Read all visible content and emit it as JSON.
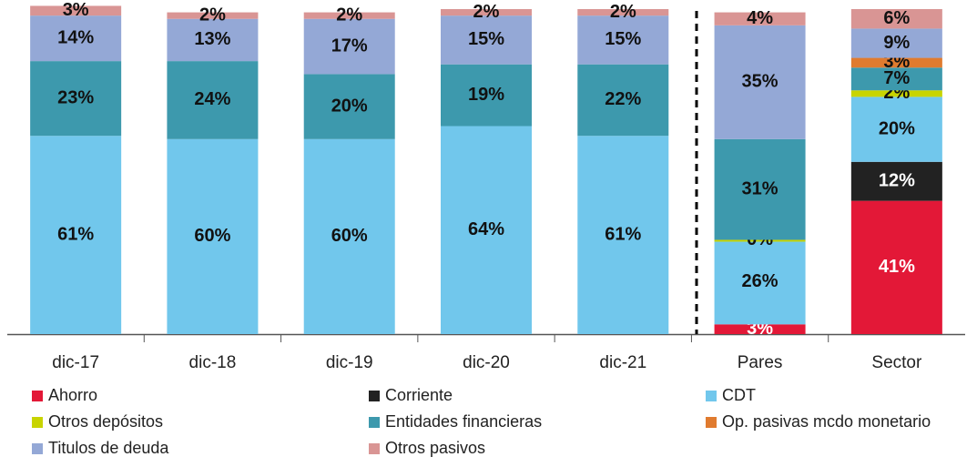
{
  "chart_data": {
    "type": "stacked_bar",
    "categories": [
      "dic-17",
      "dic-18",
      "dic-19",
      "dic-20",
      "dic-21",
      "Pares",
      "Sector"
    ],
    "ylim": [
      0,
      100
    ],
    "series": [
      {
        "name": "Ahorro",
        "color": "#e31837",
        "values": [
          null,
          null,
          null,
          null,
          null,
          3,
          41
        ],
        "value_labels": [
          null,
          null,
          null,
          null,
          null,
          "3%",
          "41%"
        ]
      },
      {
        "name": "Corriente",
        "color": "#222222",
        "values": [
          null,
          null,
          null,
          null,
          null,
          null,
          12
        ],
        "value_labels": [
          null,
          null,
          null,
          null,
          null,
          null,
          "12%"
        ]
      },
      {
        "name": "CDT",
        "color": "#71c7ec",
        "values": [
          61,
          60,
          60,
          64,
          61,
          26,
          20
        ],
        "value_labels": [
          "61%",
          "60%",
          "60%",
          "64%",
          "61%",
          "26%",
          "20%"
        ]
      },
      {
        "name": "Otros depósitos",
        "color": "#c8d400",
        "values": [
          null,
          null,
          null,
          null,
          null,
          0,
          2
        ],
        "value_labels": [
          null,
          null,
          null,
          null,
          null,
          "0%",
          "2%"
        ]
      },
      {
        "name": "Entidades financieras",
        "color": "#3d99ad",
        "values": [
          23,
          24,
          20,
          19,
          22,
          31,
          7
        ],
        "value_labels": [
          "23%",
          "24%",
          "20%",
          "19%",
          "22%",
          "31%",
          "7%"
        ]
      },
      {
        "name": "Op. pasivas mcdo monetario",
        "color": "#e07b2f",
        "values": [
          null,
          null,
          null,
          null,
          null,
          null,
          3
        ],
        "value_labels": [
          null,
          null,
          null,
          null,
          null,
          null,
          "3%"
        ]
      },
      {
        "name": "Titulos de deuda",
        "color": "#94a8d6",
        "values": [
          14,
          13,
          17,
          15,
          15,
          35,
          9
        ],
        "value_labels": [
          "14%",
          "13%",
          "17%",
          "15%",
          "15%",
          "35%",
          "9%"
        ]
      },
      {
        "name": "Otros pasivos",
        "color": "#d99594",
        "values": [
          3,
          2,
          2,
          2,
          2,
          4,
          6
        ],
        "value_labels": [
          "3%",
          "2%",
          "2%",
          "2%",
          "2%",
          "4%",
          "6%"
        ]
      }
    ]
  }
}
